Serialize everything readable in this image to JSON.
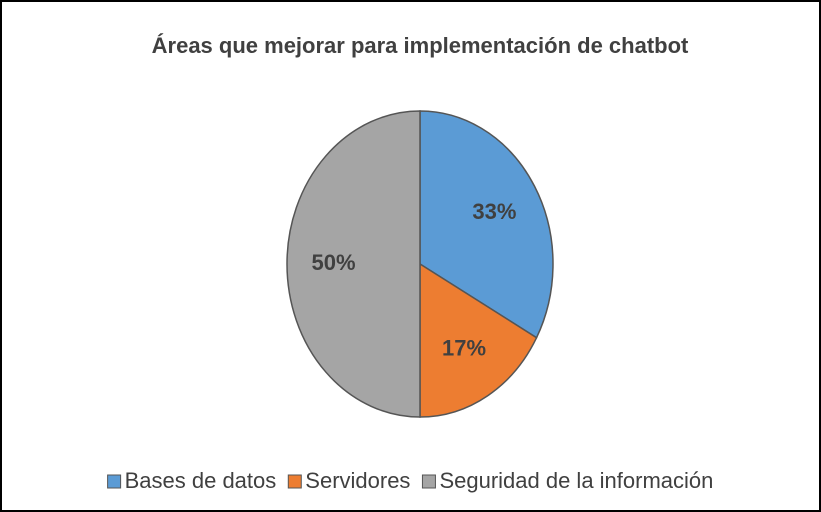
{
  "chart_data": {
    "type": "pie",
    "title": "Áreas que mejorar para implementación de chatbot",
    "categories": [
      "Bases de datos",
      "Servidores",
      "Seguridad de la información"
    ],
    "values": [
      33,
      17,
      50
    ],
    "value_labels": [
      "33%",
      "17%",
      "50%"
    ],
    "colors": [
      "#5b9bd5",
      "#ed7d31",
      "#a5a5a5"
    ],
    "legend": "bottom"
  }
}
